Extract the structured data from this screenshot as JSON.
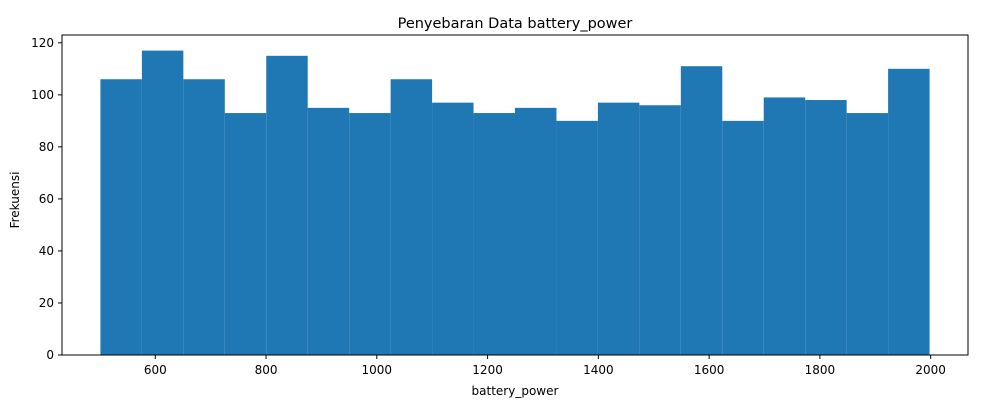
{
  "chart_data": {
    "type": "bar",
    "title": "Penyebaran Data battery_power",
    "xlabel": "battery_power",
    "ylabel": "Frekuensi",
    "xlim": [
      431.6,
      2067.4
    ],
    "ylim": [
      0,
      123
    ],
    "xticks": [
      600,
      800,
      1000,
      1200,
      1400,
      1600,
      1800,
      2000
    ],
    "yticks": [
      0,
      20,
      40,
      60,
      80,
      100,
      120
    ],
    "grid": false,
    "bar_color": "#1f77b4",
    "bins": {
      "start": 501,
      "end": 1998,
      "count": 20,
      "values": [
        106,
        117,
        106,
        93,
        115,
        95,
        93,
        106,
        97,
        93,
        95,
        90,
        97,
        96,
        111,
        90,
        99,
        98,
        93,
        110
      ]
    }
  }
}
